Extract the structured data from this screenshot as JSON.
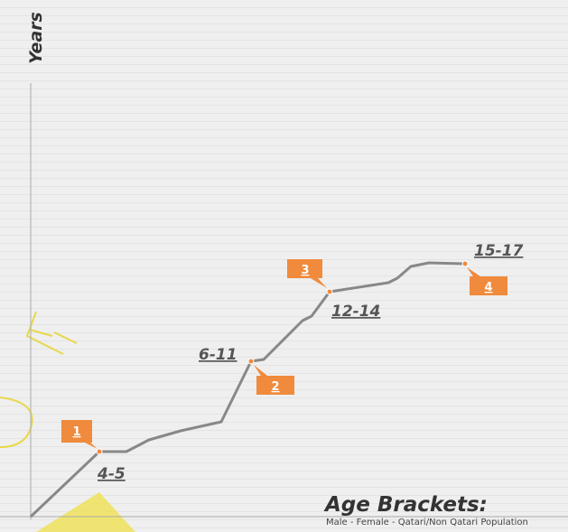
{
  "axis_label": "Years",
  "markers": [
    {
      "number": "1",
      "bracket": "4-5"
    },
    {
      "number": "2",
      "bracket": "6-11"
    },
    {
      "number": "3",
      "bracket": "12-14"
    },
    {
      "number": "4",
      "bracket": "15-17"
    }
  ],
  "legend": {
    "title": "Age Brackets:",
    "subtitle": "Male - Female - Qatari/Non Qatari Population"
  }
}
